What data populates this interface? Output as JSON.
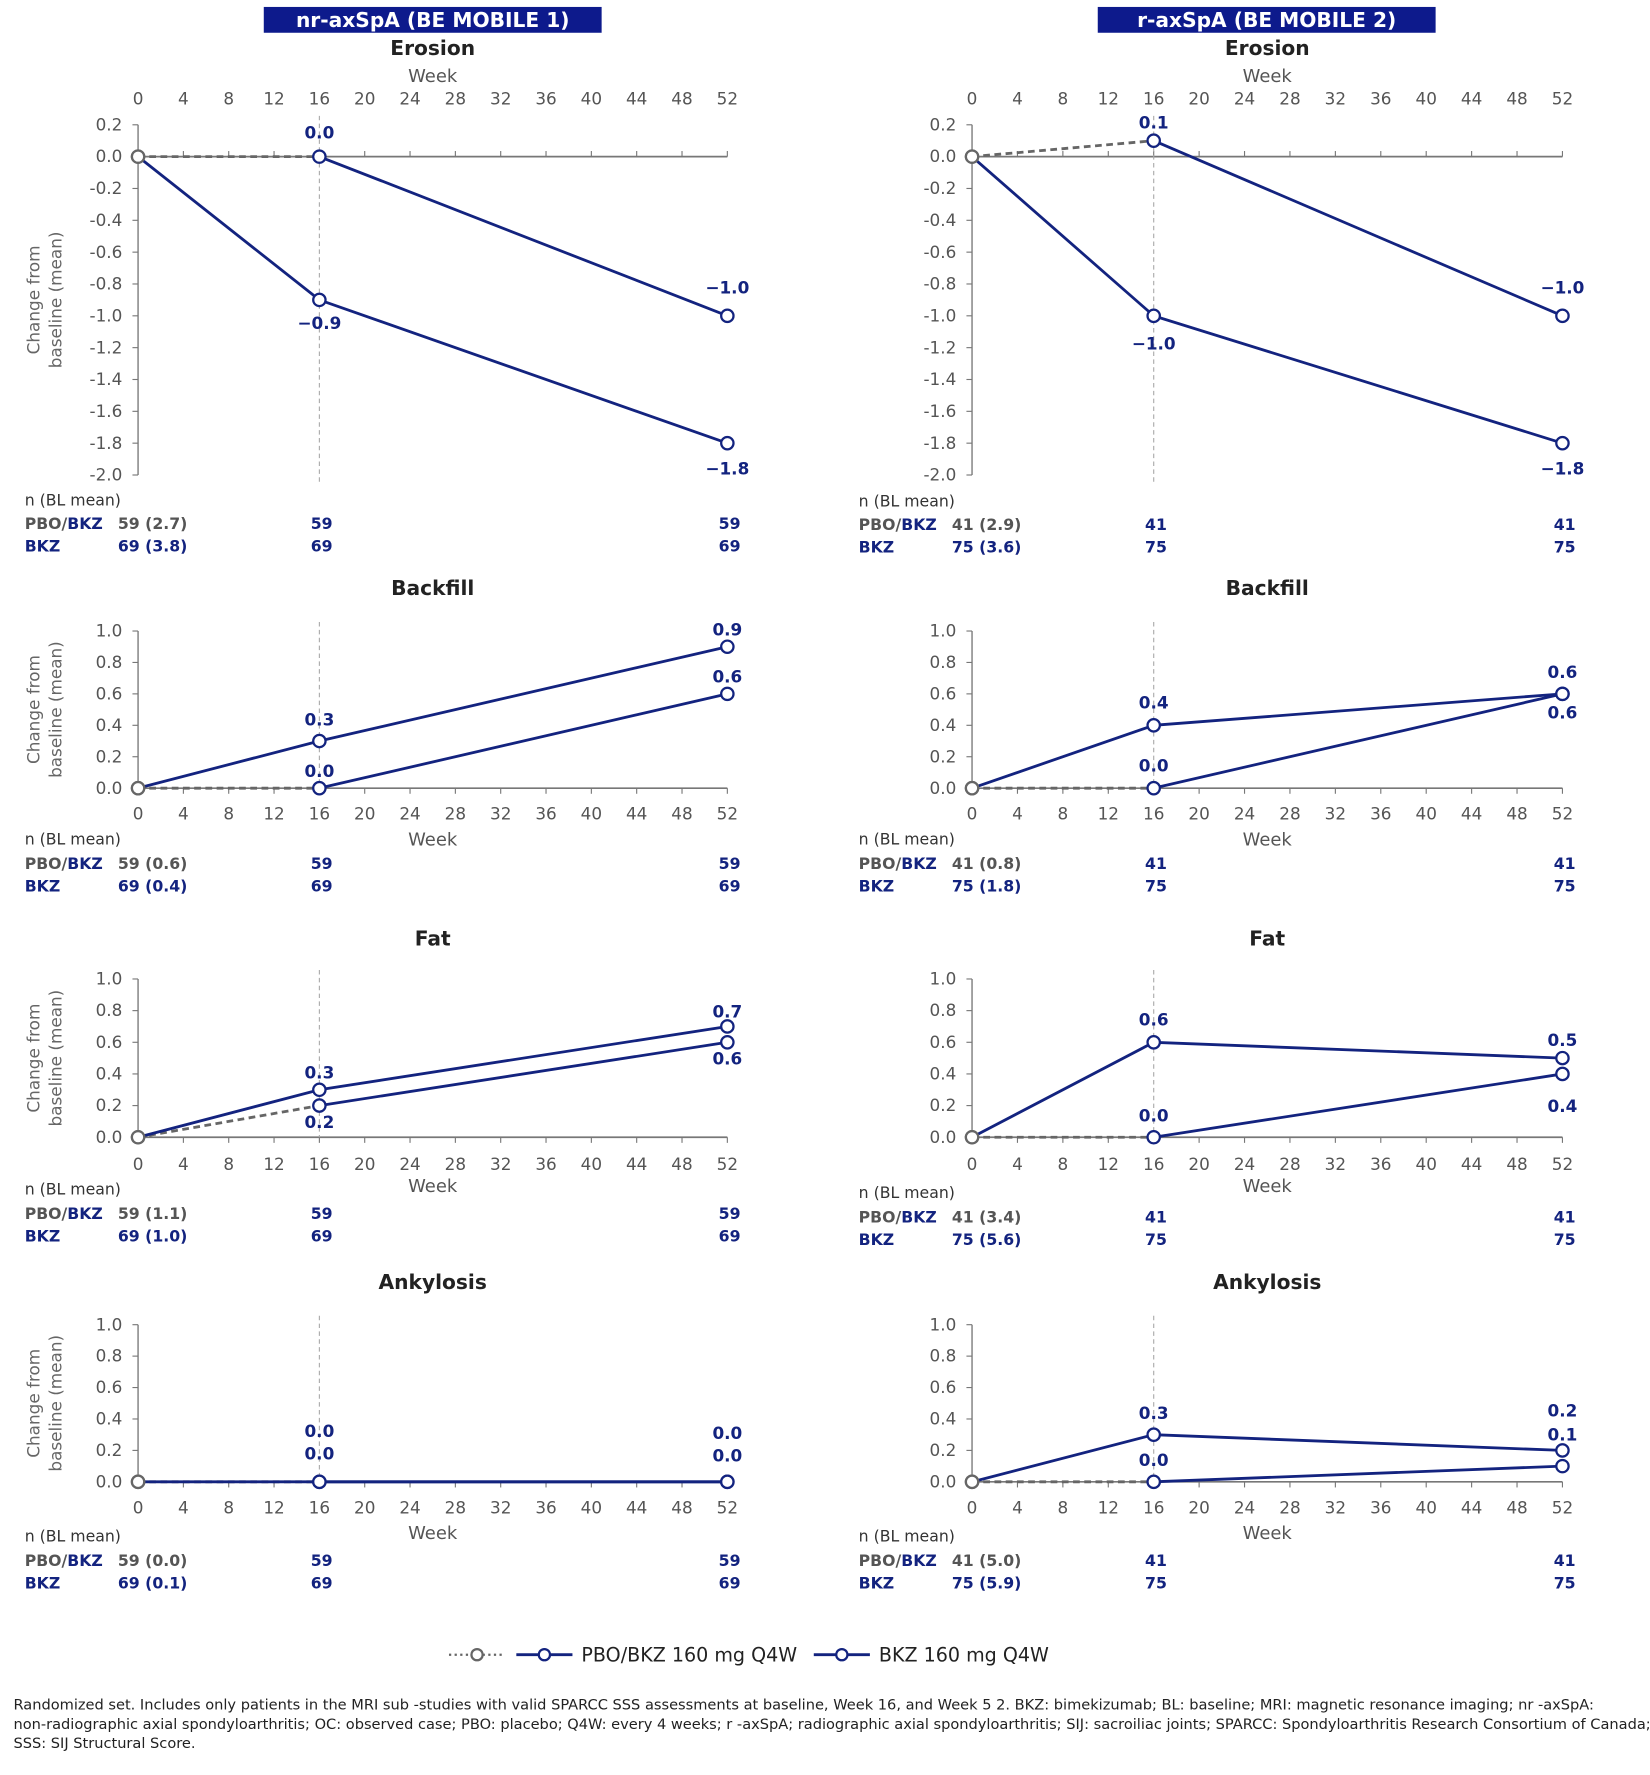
{
  "colors": {
    "bkz": "#13237f",
    "placebo": "#666666",
    "banner": "#0d1a8c"
  },
  "banners": [
    "nr-axSpA (BE MOBILE 1)",
    "r-axSpA (BE MOBILE 2)"
  ],
  "n_header": "n (BL mean)",
  "row_labels": {
    "pbo_a": "PBO/",
    "pbo_b": "BKZ",
    "bkz": "BKZ"
  },
  "legend": {
    "placebo_dotted": "",
    "pbo_bkz": "PBO/BKZ 160 mg Q4W",
    "bkz": "BKZ 160 mg Q4W"
  },
  "footnote": [
    "Randomized set. Includes only patients in the MRI sub -studies with valid SPARCC SSS assessments at baseline, Week 16, and Week 5 2. BKZ: bimekizumab; BL: baseline; MRI: magnetic resonance imaging; nr -axSpA:",
    "non-radiographic axial spondyloarthritis; OC: observed case; PBO: placebo; Q4W: every 4 weeks; r -axSpA; radiographic axial spondyloarthritis; SIJ: sacroiliac joints; SPARCC: Spondyloarthritis Research Consortium of Canada;",
    "SSS: SIJ Structural Score."
  ],
  "chart_data": [
    {
      "type": "line",
      "study": "nr-axSpA (BE MOBILE 1)",
      "title": "Erosion",
      "xlabel": "Week",
      "ylabel": "Change from baseline (mean)",
      "x": [
        0,
        16,
        52
      ],
      "xticks": [
        0,
        4,
        8,
        12,
        16,
        20,
        24,
        28,
        32,
        36,
        40,
        44,
        48,
        52
      ],
      "ylim": [
        -2.0,
        0.2
      ],
      "ystep": 0.2,
      "series": [
        {
          "name": "PBO/BKZ 160 mg Q4W",
          "values": [
            0.0,
            0.0,
            -1.0
          ],
          "labels": [
            "",
            "0.0",
            "−1.0"
          ]
        },
        {
          "name": "BKZ 160 mg Q4W",
          "values": [
            0.0,
            -0.9,
            -1.8
          ],
          "labels": [
            "",
            "−0.9",
            "−1.8"
          ]
        }
      ],
      "n": {
        "pbo": [
          "59 (2.7)",
          "59",
          "59"
        ],
        "bkz": [
          "69 (3.8)",
          "69",
          "69"
        ]
      }
    },
    {
      "type": "line",
      "study": "r-axSpA (BE MOBILE 2)",
      "title": "Erosion",
      "xlabel": "Week",
      "ylabel": "",
      "x": [
        0,
        16,
        52
      ],
      "xticks": [
        0,
        4,
        8,
        12,
        16,
        20,
        24,
        28,
        32,
        36,
        40,
        44,
        48,
        52
      ],
      "ylim": [
        -2.0,
        0.2
      ],
      "ystep": 0.2,
      "series": [
        {
          "name": "PBO/BKZ 160 mg Q4W",
          "values": [
            0.0,
            0.1,
            -1.0
          ],
          "labels": [
            "",
            "0.1",
            "−1.0"
          ]
        },
        {
          "name": "BKZ 160 mg Q4W",
          "values": [
            0.0,
            -1.0,
            -1.8
          ],
          "labels": [
            "",
            "−1.0",
            "−1.8"
          ]
        }
      ],
      "n": {
        "pbo": [
          "41 (2.9)",
          "41",
          "41"
        ],
        "bkz": [
          "75 (3.6)",
          "75",
          "75"
        ]
      }
    },
    {
      "type": "line",
      "study": "nr-axSpA (BE MOBILE 1)",
      "title": "Backfill",
      "xlabel": "Week",
      "ylabel": "Change from baseline (mean)",
      "x": [
        0,
        16,
        52
      ],
      "xticks": [
        0,
        4,
        8,
        12,
        16,
        20,
        24,
        28,
        32,
        36,
        40,
        44,
        48,
        52
      ],
      "ylim": [
        0.0,
        1.0
      ],
      "ystep": 0.2,
      "series": [
        {
          "name": "PBO/BKZ 160 mg Q4W",
          "values": [
            0.0,
            0.0,
            0.6
          ],
          "labels": [
            "",
            "0.0",
            "0.6"
          ]
        },
        {
          "name": "BKZ 160 mg Q4W",
          "values": [
            0.0,
            0.3,
            0.9
          ],
          "labels": [
            "",
            "0.3",
            "0.9"
          ]
        }
      ],
      "n": {
        "pbo": [
          "59 (0.6)",
          "59",
          "59"
        ],
        "bkz": [
          "69 (0.4)",
          "69",
          "69"
        ]
      }
    },
    {
      "type": "line",
      "study": "r-axSpA (BE MOBILE 2)",
      "title": "Backfill",
      "xlabel": "Week",
      "ylabel": "",
      "x": [
        0,
        16,
        52
      ],
      "xticks": [
        0,
        4,
        8,
        12,
        16,
        20,
        24,
        28,
        32,
        36,
        40,
        44,
        48,
        52
      ],
      "ylim": [
        0.0,
        1.0
      ],
      "ystep": 0.2,
      "series": [
        {
          "name": "PBO/BKZ 160 mg Q4W",
          "values": [
            0.0,
            0.0,
            0.6
          ],
          "labels": [
            "",
            "0.0",
            "0.6"
          ]
        },
        {
          "name": "BKZ 160 mg Q4W",
          "values": [
            0.0,
            0.4,
            0.6
          ],
          "labels": [
            "",
            "0.4",
            "0.6"
          ]
        }
      ],
      "n": {
        "pbo": [
          "41 (0.8)",
          "41",
          "41"
        ],
        "bkz": [
          "75 (1.8)",
          "75",
          "75"
        ]
      }
    },
    {
      "type": "line",
      "study": "nr-axSpA (BE MOBILE 1)",
      "title": "Fat",
      "xlabel": "Week",
      "ylabel": "Change from baseline (mean)",
      "x": [
        0,
        16,
        52
      ],
      "xticks": [
        0,
        4,
        8,
        12,
        16,
        20,
        24,
        28,
        32,
        36,
        40,
        44,
        48,
        52
      ],
      "ylim": [
        0.0,
        1.0
      ],
      "ystep": 0.2,
      "series": [
        {
          "name": "PBO/BKZ 160 mg Q4W",
          "values": [
            0.0,
            0.2,
            0.6
          ],
          "labels": [
            "",
            "0.2",
            "0.6"
          ]
        },
        {
          "name": "BKZ 160 mg Q4W",
          "values": [
            0.0,
            0.3,
            0.7
          ],
          "labels": [
            "",
            "0.3",
            "0.7"
          ]
        }
      ],
      "n": {
        "pbo": [
          "59 (1.1)",
          "59",
          "59"
        ],
        "bkz": [
          "69 (1.0)",
          "69",
          "69"
        ]
      }
    },
    {
      "type": "line",
      "study": "r-axSpA (BE MOBILE 2)",
      "title": "Fat",
      "xlabel": "Week",
      "ylabel": "",
      "x": [
        0,
        16,
        52
      ],
      "xticks": [
        0,
        4,
        8,
        12,
        16,
        20,
        24,
        28,
        32,
        36,
        40,
        44,
        48,
        52
      ],
      "ylim": [
        0.0,
        1.0
      ],
      "ystep": 0.2,
      "series": [
        {
          "name": "PBO/BKZ 160 mg Q4W",
          "values": [
            0.0,
            0.0,
            0.4
          ],
          "labels": [
            "",
            "0.0",
            "0.4"
          ]
        },
        {
          "name": "BKZ 160 mg Q4W",
          "values": [
            0.0,
            0.6,
            0.5
          ],
          "labels": [
            "",
            "0.6",
            "0.5"
          ]
        }
      ],
      "n": {
        "pbo": [
          "41 (3.4)",
          "41",
          "41"
        ],
        "bkz": [
          "75 (5.6)",
          "75",
          "75"
        ]
      }
    },
    {
      "type": "line",
      "study": "nr-axSpA (BE MOBILE 1)",
      "title": "Ankylosis",
      "xlabel": "Week",
      "ylabel": "Change from baseline (mean)",
      "x": [
        0,
        16,
        52
      ],
      "xticks": [
        0,
        4,
        8,
        12,
        16,
        20,
        24,
        28,
        32,
        36,
        40,
        44,
        48,
        52
      ],
      "ylim": [
        0.0,
        1.0
      ],
      "ystep": 0.2,
      "series": [
        {
          "name": "PBO/BKZ 160 mg Q4W",
          "values": [
            0.0,
            0.0,
            0.0
          ],
          "labels": [
            "",
            "0.0",
            "0.0"
          ]
        },
        {
          "name": "BKZ 160 mg Q4W",
          "values": [
            0.0,
            0.0,
            0.0
          ],
          "labels": [
            "",
            "0.0",
            "0.0"
          ]
        }
      ],
      "n": {
        "pbo": [
          "59 (0.0)",
          "59",
          "59"
        ],
        "bkz": [
          "69 (0.1)",
          "69",
          "69"
        ]
      }
    },
    {
      "type": "line",
      "study": "r-axSpA (BE MOBILE 2)",
      "title": "Ankylosis",
      "xlabel": "Week",
      "ylabel": "",
      "x": [
        0,
        16,
        52
      ],
      "xticks": [
        0,
        4,
        8,
        12,
        16,
        20,
        24,
        28,
        32,
        36,
        40,
        44,
        48,
        52
      ],
      "ylim": [
        0.0,
        1.0
      ],
      "ystep": 0.2,
      "series": [
        {
          "name": "PBO/BKZ 160 mg Q4W",
          "values": [
            0.0,
            0.0,
            0.1
          ],
          "labels": [
            "",
            "0.0",
            "0.1"
          ]
        },
        {
          "name": "BKZ 160 mg Q4W",
          "values": [
            0.0,
            0.3,
            0.2
          ],
          "labels": [
            "",
            "0.3",
            "0.2"
          ]
        }
      ],
      "n": {
        "pbo": [
          "41 (5.0)",
          "41",
          "41"
        ],
        "bkz": [
          "75 (5.9)",
          "75",
          "75"
        ]
      }
    }
  ]
}
